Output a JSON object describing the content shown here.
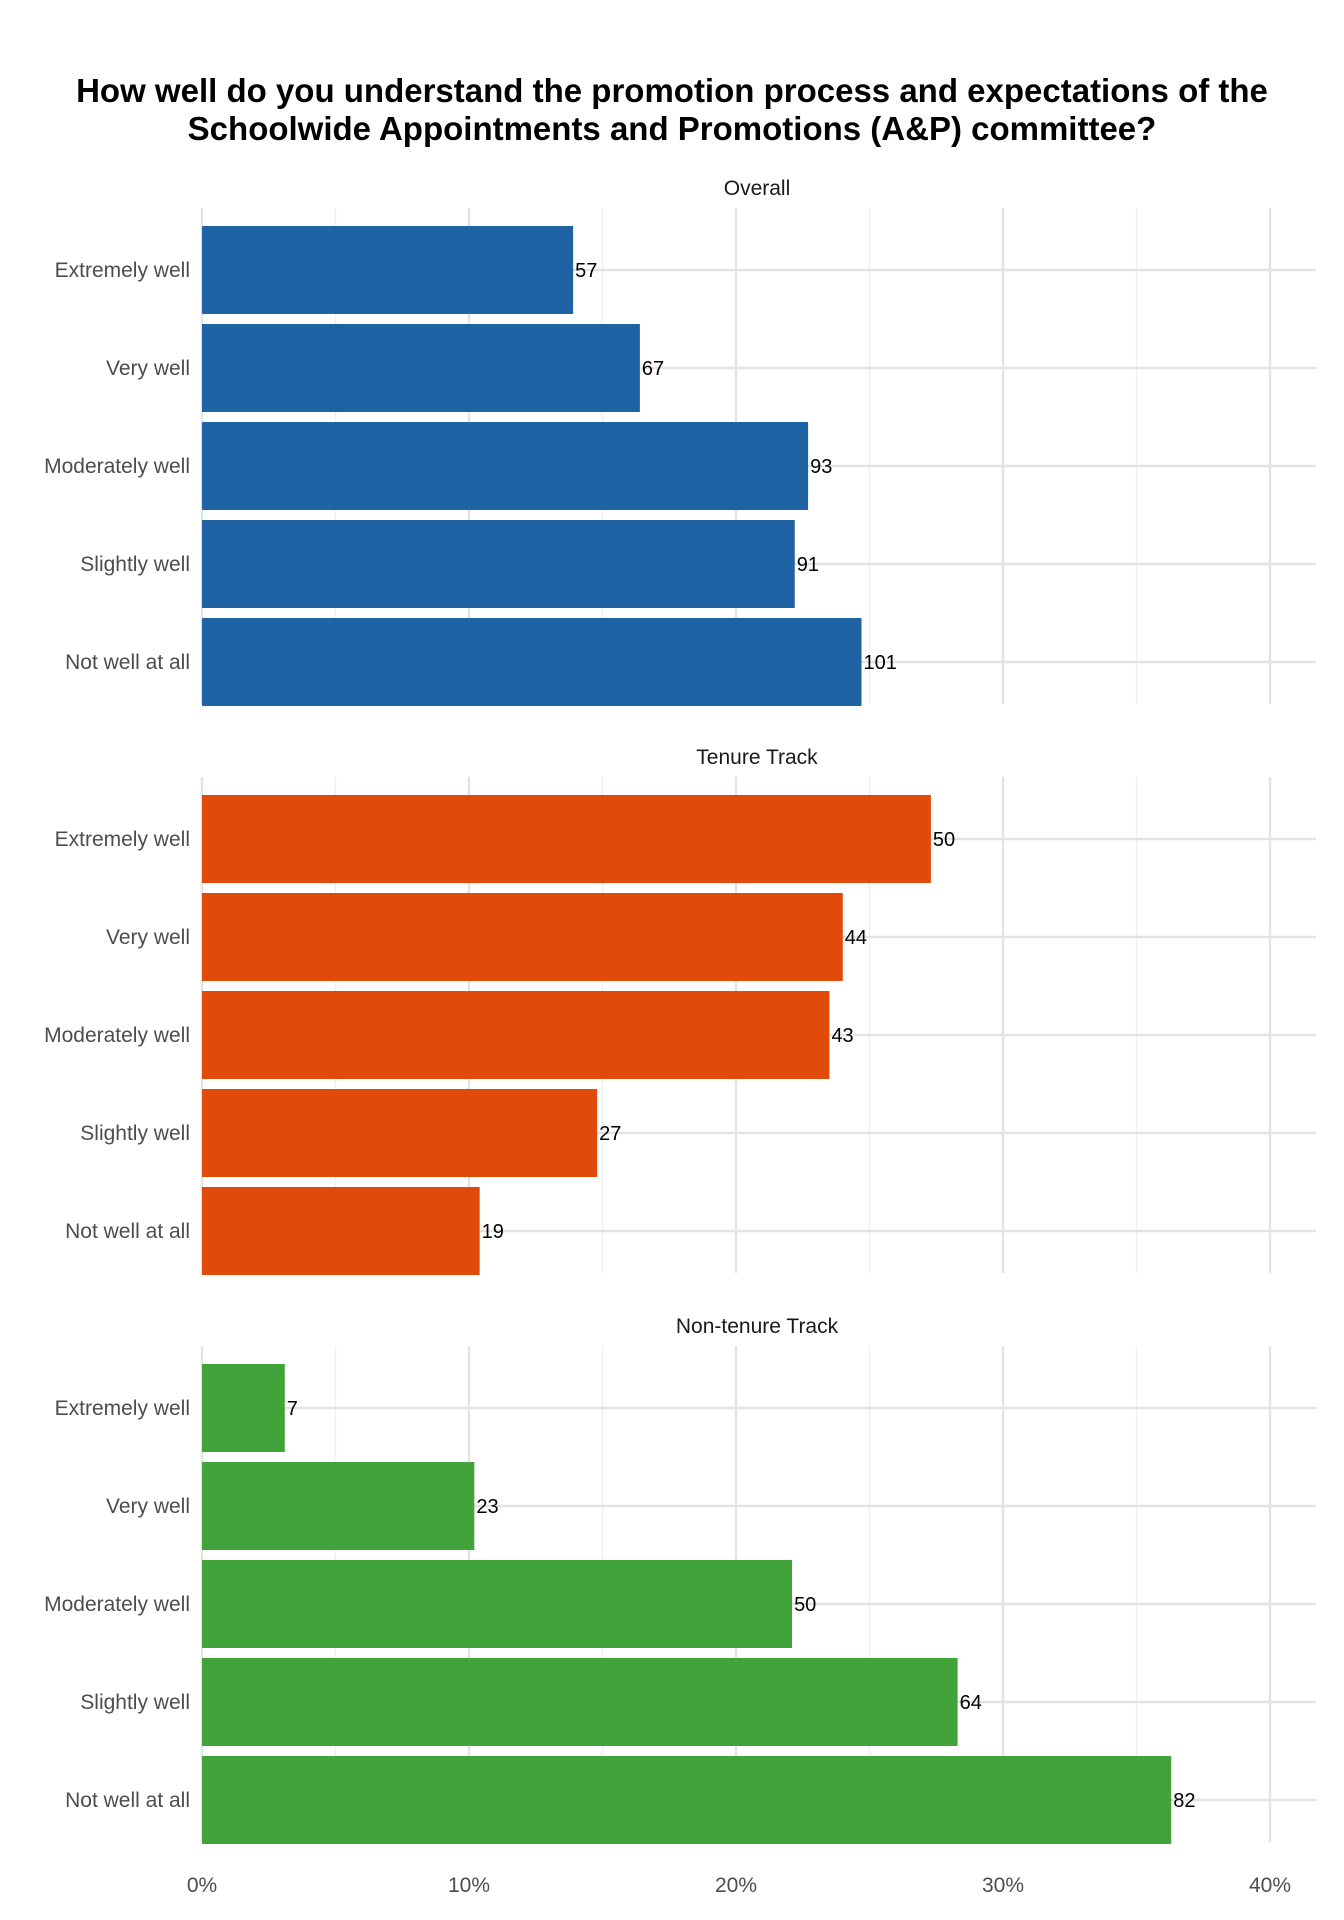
{
  "chart_data": {
    "type": "bar",
    "orientation": "horizontal",
    "title": "How well do you understand the promotion process and expectations of the Schoolwide Appointments and Promotions (A&P) committee?",
    "title_lines": [
      "How well do you understand the promotion process and expectations of the",
      "Schoolwide Appointments and Promotions (A&P) committee?"
    ],
    "categories": [
      "Extremely well",
      "Very well",
      "Moderately well",
      "Slightly well",
      "Not well at all"
    ],
    "x_ticks": [
      "0%",
      "10%",
      "20%",
      "30%",
      "40%"
    ],
    "xlim": [
      0,
      0.42
    ],
    "grid": true,
    "panels": [
      {
        "name": "Overall",
        "color": "#1F63A4",
        "counts": [
          57,
          67,
          93,
          91,
          101
        ],
        "values": [
          0.139,
          0.164,
          0.227,
          0.222,
          0.247
        ]
      },
      {
        "name": "Tenure Track",
        "color": "#E04A0A",
        "counts": [
          50,
          44,
          43,
          27,
          19
        ],
        "values": [
          0.273,
          0.24,
          0.235,
          0.148,
          0.104
        ]
      },
      {
        "name": "Non-tenure Track",
        "color": "#41A33A",
        "counts": [
          7,
          23,
          50,
          64,
          82
        ],
        "values": [
          0.031,
          0.102,
          0.221,
          0.283,
          0.363
        ]
      }
    ]
  }
}
